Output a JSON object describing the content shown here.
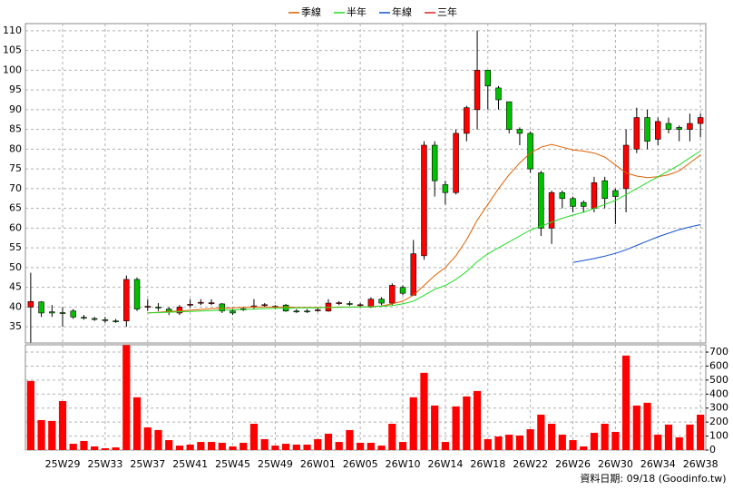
{
  "chart_data": {
    "type": "candlestick",
    "categories": [
      null,
      null,
      null,
      "25W29",
      null,
      null,
      null,
      "25W33",
      null,
      null,
      null,
      "25W37",
      null,
      null,
      null,
      "25W41",
      null,
      null,
      null,
      "25W45",
      null,
      null,
      null,
      "25W49",
      null,
      null,
      null,
      "26W01",
      null,
      null,
      null,
      "26W05",
      null,
      null,
      null,
      "26W10",
      null,
      null,
      null,
      "26W14",
      null,
      null,
      null,
      "26W18",
      null,
      null,
      null,
      "26W22",
      null,
      null,
      null,
      "26W26",
      null,
      null,
      null,
      "26W30",
      null,
      null,
      null,
      "26W34",
      null,
      null,
      null,
      "26W38"
    ],
    "open": [
      40,
      41.3,
      38.8,
      38.6,
      39,
      37.4,
      37.1,
      36.8,
      36.5,
      36.5,
      47,
      40,
      40,
      39.5,
      38.5,
      40.5,
      41,
      41,
      40.8,
      39,
      39.3,
      40,
      40.4,
      40,
      40.5,
      39,
      39,
      39.1,
      39,
      40.9,
      40.9,
      40.4,
      40,
      42,
      41,
      45,
      43,
      53,
      81,
      71,
      69,
      84,
      90,
      100,
      95.5,
      92,
      85,
      84,
      74,
      60,
      69,
      67.5,
      66.5,
      65,
      72,
      69.5,
      70,
      80,
      88,
      82.5,
      86.5,
      85.5,
      85,
      86.5
    ],
    "high": [
      48.7,
      41.5,
      40.5,
      40,
      39.5,
      38,
      37.5,
      37.5,
      37,
      48,
      47.5,
      42,
      41,
      40,
      40.5,
      42,
      42,
      42,
      41,
      39.5,
      40,
      42,
      41,
      40.5,
      40.8,
      39.5,
      39.5,
      40,
      42,
      41.5,
      41.5,
      41,
      42.5,
      42.5,
      46,
      45.5,
      57,
      82,
      82,
      72,
      85,
      91,
      110,
      100,
      96,
      92,
      85.5,
      84.5,
      74.5,
      69.5,
      69.5,
      68,
      67,
      73,
      73,
      70,
      85,
      90.5,
      90,
      88,
      88,
      86,
      89,
      89
    ],
    "low": [
      31,
      37.5,
      37.5,
      35,
      37,
      36.8,
      36.5,
      36,
      36,
      35,
      39,
      39,
      39,
      38,
      38,
      40,
      40.5,
      40.5,
      38.5,
      38,
      39,
      39.5,
      40,
      39.5,
      38.8,
      38.5,
      38.5,
      38.8,
      38.8,
      40.5,
      40.3,
      40,
      39.8,
      40.5,
      40.5,
      43,
      43,
      52,
      68,
      66,
      68.5,
      82,
      85,
      90,
      90,
      84,
      81,
      74,
      58,
      56,
      65,
      64,
      64,
      64,
      65,
      61,
      64,
      79,
      80,
      81,
      84,
      82,
      82,
      83
    ],
    "close": [
      41.4,
      38.5,
      38.5,
      38.4,
      37.5,
      37.2,
      37,
      36.7,
      36.4,
      47,
      39.5,
      40.2,
      39.8,
      38.8,
      40,
      40.7,
      41.2,
      41.1,
      39,
      38.5,
      39.6,
      40.3,
      40.6,
      40.2,
      39,
      38.9,
      38.8,
      39.3,
      41,
      41.1,
      40.7,
      40.6,
      42,
      41,
      45.5,
      43.5,
      53.5,
      81,
      72,
      69,
      84,
      90.5,
      100,
      96,
      92.5,
      85,
      84,
      75,
      60,
      69,
      67.5,
      65.5,
      65.5,
      71.5,
      67.5,
      68,
      81,
      88,
      82,
      87,
      85,
      85,
      86.5,
      88
    ],
    "up_color": "#ff0000",
    "down_color": "#00c000",
    "ylim": [
      30.9,
      111.8
    ],
    "yticks": [
      35,
      40,
      45,
      50,
      55,
      60,
      65,
      70,
      75,
      80,
      85,
      90,
      95,
      100,
      105,
      110
    ],
    "grid": true,
    "series": [
      {
        "name": "季線",
        "color": "#e06000",
        "values": [
          null,
          null,
          null,
          null,
          null,
          null,
          null,
          null,
          null,
          null,
          null,
          38.5,
          38.7,
          38.9,
          39.0,
          39.2,
          39.4,
          39.6,
          39.7,
          39.8,
          39.9,
          40.0,
          40.0,
          40.0,
          40.0,
          39.9,
          39.9,
          39.9,
          39.9,
          40.0,
          40.0,
          40.0,
          40.1,
          40.3,
          40.8,
          41.5,
          43.0,
          45.5,
          48.0,
          50.0,
          53.0,
          57.0,
          62.0,
          66.0,
          70.0,
          73.5,
          76.5,
          79.0,
          80.5,
          81.2,
          80.5,
          79.8,
          79.5,
          79.0,
          78.0,
          76.0,
          74.0,
          73.2,
          72.8,
          73.0,
          73.5,
          74.5,
          76.5,
          78.5
        ]
      },
      {
        "name": "半年",
        "color": "#22dd22",
        "values": [
          null,
          null,
          null,
          null,
          null,
          null,
          null,
          null,
          null,
          null,
          null,
          38.5,
          38.6,
          38.7,
          38.8,
          38.9,
          39.0,
          39.1,
          39.2,
          39.3,
          39.4,
          39.5,
          39.6,
          39.7,
          39.7,
          39.8,
          39.8,
          39.8,
          39.9,
          39.9,
          40.0,
          40.0,
          40.1,
          40.2,
          40.4,
          40.8,
          41.5,
          43.0,
          44.5,
          45.5,
          47.0,
          49.0,
          51.5,
          53.5,
          55.0,
          56.5,
          58.0,
          59.5,
          60.5,
          61.5,
          62.5,
          63.3,
          64.0,
          65.0,
          66.0,
          67.0,
          68.5,
          70.0,
          71.5,
          73.0,
          74.5,
          76.0,
          77.8,
          79.5
        ]
      },
      {
        "name": "年線",
        "color": "#1050d0",
        "values": [
          null,
          null,
          null,
          null,
          null,
          null,
          null,
          null,
          null,
          null,
          null,
          null,
          null,
          null,
          null,
          null,
          null,
          null,
          null,
          null,
          null,
          null,
          null,
          null,
          null,
          null,
          null,
          null,
          null,
          null,
          null,
          null,
          null,
          null,
          null,
          null,
          null,
          null,
          null,
          null,
          null,
          null,
          null,
          null,
          null,
          null,
          null,
          null,
          null,
          null,
          null,
          51.3,
          51.8,
          52.3,
          52.9,
          53.6,
          54.5,
          55.6,
          56.7,
          57.8,
          58.7,
          59.6,
          60.3,
          60.9
        ]
      },
      {
        "name": "三年",
        "color": "#e02020",
        "values": [
          null,
          null,
          null,
          null,
          null,
          null,
          null,
          null,
          null,
          null,
          null,
          null,
          null,
          null,
          null,
          null,
          null,
          null,
          null,
          null,
          null,
          null,
          null,
          null,
          null,
          null,
          null,
          null,
          null,
          null,
          null,
          null,
          null,
          null,
          null,
          null,
          null,
          null,
          null,
          null,
          null,
          null,
          null,
          null,
          null,
          null,
          null,
          null,
          null,
          null,
          null,
          null,
          null,
          null,
          null,
          null,
          null,
          null,
          null,
          null,
          null,
          null,
          null,
          null
        ]
      }
    ],
    "volume": {
      "color": "#ff0000",
      "values": [
        494,
        214,
        208,
        350,
        45,
        65,
        26,
        13,
        19,
        750,
        377,
        162,
        143,
        71,
        32,
        39,
        58,
        58,
        52,
        26,
        52,
        188,
        78,
        32,
        45,
        39,
        39,
        78,
        117,
        58,
        143,
        52,
        52,
        32,
        188,
        58,
        377,
        552,
        318,
        58,
        312,
        383,
        422,
        78,
        97,
        110,
        104,
        149,
        253,
        188,
        110,
        71,
        26,
        123,
        188,
        130,
        675,
        318,
        338,
        110,
        182,
        91,
        182,
        253
      ],
      "ylim": [
        0,
        752
      ],
      "yticks": [
        0,
        100,
        200,
        300,
        400,
        500,
        600,
        700
      ]
    },
    "source": "資料日期: 09/18  (Goodinfo.tw)"
  }
}
